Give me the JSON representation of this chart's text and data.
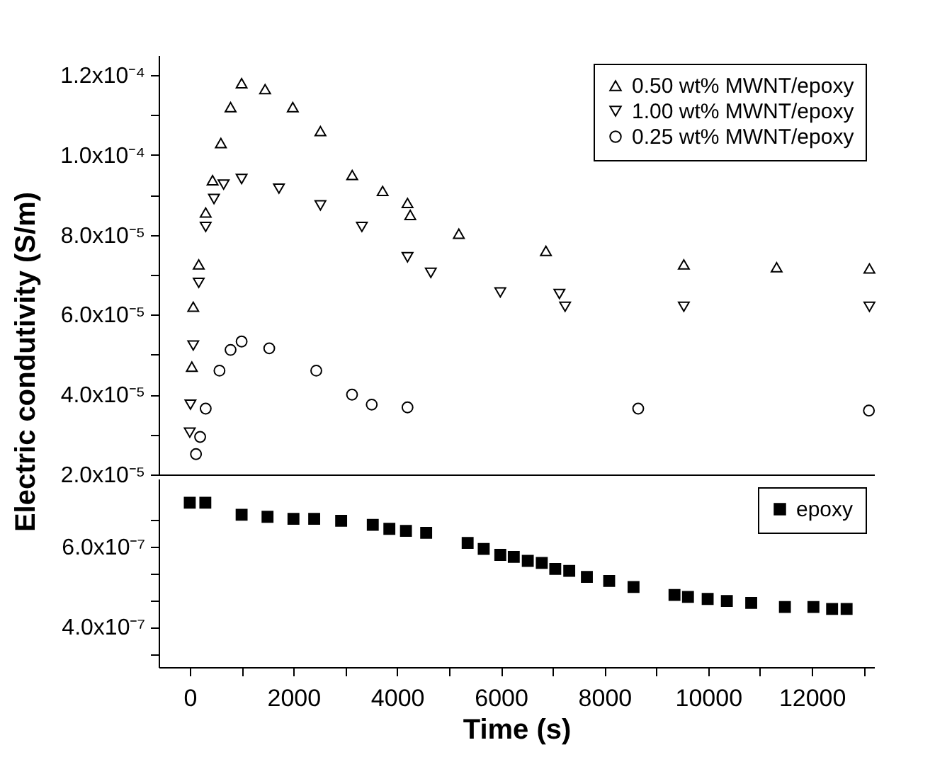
{
  "chart_data": [
    {
      "type": "scatter",
      "ylabel": "Electric condutivity (S/m)",
      "xlim": [
        -600,
        13200
      ],
      "ylim": [
        2e-05,
        0.000125
      ],
      "yticks": [
        {
          "value": 2e-05,
          "label": "2.0x10⁻⁵"
        },
        {
          "value": 3e-05,
          "label": null
        },
        {
          "value": 4e-05,
          "label": "4.0x10⁻⁵"
        },
        {
          "value": 5e-05,
          "label": null
        },
        {
          "value": 6e-05,
          "label": "6.0x10⁻⁵"
        },
        {
          "value": 7e-05,
          "label": null
        },
        {
          "value": 8e-05,
          "label": "8.0x10⁻⁵"
        },
        {
          "value": 9e-05,
          "label": null
        },
        {
          "value": 0.0001,
          "label": "1.0x10⁻⁴"
        },
        {
          "value": 0.00011,
          "label": null
        },
        {
          "value": 0.00012,
          "label": "1.2x10⁻⁴"
        }
      ],
      "tick_labels": "y",
      "legend": "top right",
      "grid": false,
      "series": [
        {
          "name": "0.50 wt% MWNT/epoxy",
          "color": "#000000",
          "marker": "triangle",
          "x": [
            40,
            67,
            173,
            307,
            440,
            600,
            787,
            1000,
            1453,
            1987,
            2520,
            3133,
            3720,
            4200,
            4253,
            5190,
            6870,
            9530,
            11320,
            13110
          ],
          "values": [
            4.7e-05,
            6.2e-05,
            7.26e-05,
            8.56e-05,
            9.37e-05,
            0.000103,
            0.000112,
            0.000118,
            0.0001165,
            0.000112,
            0.000106,
            9.5e-05,
            9.1e-05,
            8.8e-05,
            8.5e-05,
            8.03e-05,
            7.6e-05,
            7.26e-05,
            7.19e-05,
            7.16e-05
          ]
        },
        {
          "name": "1.00 wt% MWNT/epoxy",
          "color": "#000000",
          "marker": "triangle-down",
          "x": [
            0,
            13,
            67,
            173,
            307,
            467,
            653,
            1000,
            1720,
            2520,
            3320,
            4200,
            4650,
            5990,
            7130,
            7240,
            9530,
            13110
          ],
          "values": [
            3.05e-05,
            3.75e-05,
            5.23e-05,
            6.8e-05,
            8.2e-05,
            8.9e-05,
            9.26e-05,
            9.4e-05,
            9.16e-05,
            8.74e-05,
            8.2e-05,
            7.44e-05,
            7.05e-05,
            6.56e-05,
            6.52e-05,
            6.2e-05,
            6.2e-05,
            6.2e-05
          ]
        },
        {
          "name": "0.25 wt% MWNT/epoxy",
          "color": "#000000",
          "marker": "circle",
          "x": [
            120,
            200,
            307,
            573,
            787,
            1000,
            1533,
            2440,
            3130,
            3510,
            4200,
            8650,
            13100
          ],
          "values": [
            2.51e-05,
            2.94e-05,
            3.65e-05,
            4.6e-05,
            5.12e-05,
            5.33e-05,
            5.16e-05,
            4.6e-05,
            4e-05,
            3.75e-05,
            3.68e-05,
            3.65e-05,
            3.6e-05
          ]
        }
      ]
    },
    {
      "type": "scatter",
      "xlabel": "Time (s)",
      "xlim": [
        -600,
        13200
      ],
      "xticks": [
        0,
        {
          "value": 1000,
          "label": null
        },
        2000,
        {
          "value": 3000,
          "label": null
        },
        4000,
        {
          "value": 5000,
          "label": null
        },
        6000,
        {
          "value": 7000,
          "label": null
        },
        8000,
        {
          "value": 9000,
          "label": null
        },
        10000,
        {
          "value": 11000,
          "label": null
        },
        12000,
        {
          "value": 13000,
          "label": null
        }
      ],
      "ylim": [
        3e-07,
        7.7e-07
      ],
      "yticks": [
        {
          "value": 3.33e-07,
          "label": null
        },
        {
          "value": 4e-07,
          "label": "4.0x10⁻⁷"
        },
        {
          "value": 4.67e-07,
          "label": null
        },
        {
          "value": 5.33e-07,
          "label": null
        },
        {
          "value": 6e-07,
          "label": "6.0x10⁻⁷"
        },
        {
          "value": 6.67e-07,
          "label": null
        }
      ],
      "legend": "top right",
      "grid": false,
      "series": [
        {
          "name": "epoxy",
          "color": "#000000",
          "marker": "square",
          "x": [
            0,
            300,
            1000,
            1500,
            2000,
            2400,
            2920,
            3530,
            3850,
            4170,
            4560,
            5360,
            5670,
            5990,
            6250,
            6520,
            6790,
            7050,
            7320,
            7660,
            8090,
            8560,
            9350,
            9610,
            9990,
            10360,
            10830,
            11480,
            12030,
            12390,
            12670
          ],
          "values": [
            7.1e-07,
            7.1e-07,
            6.8e-07,
            6.75e-07,
            6.7e-07,
            6.7e-07,
            6.65e-07,
            6.55e-07,
            6.45e-07,
            6.4e-07,
            6.35e-07,
            6.1e-07,
            5.95e-07,
            5.8e-07,
            5.75e-07,
            5.65e-07,
            5.6e-07,
            5.45e-07,
            5.4e-07,
            5.25e-07,
            5.15e-07,
            5e-07,
            4.8e-07,
            4.75e-07,
            4.7e-07,
            4.65e-07,
            4.6e-07,
            4.5e-07,
            4.5e-07,
            4.45e-07,
            4.45e-07
          ]
        }
      ]
    }
  ]
}
